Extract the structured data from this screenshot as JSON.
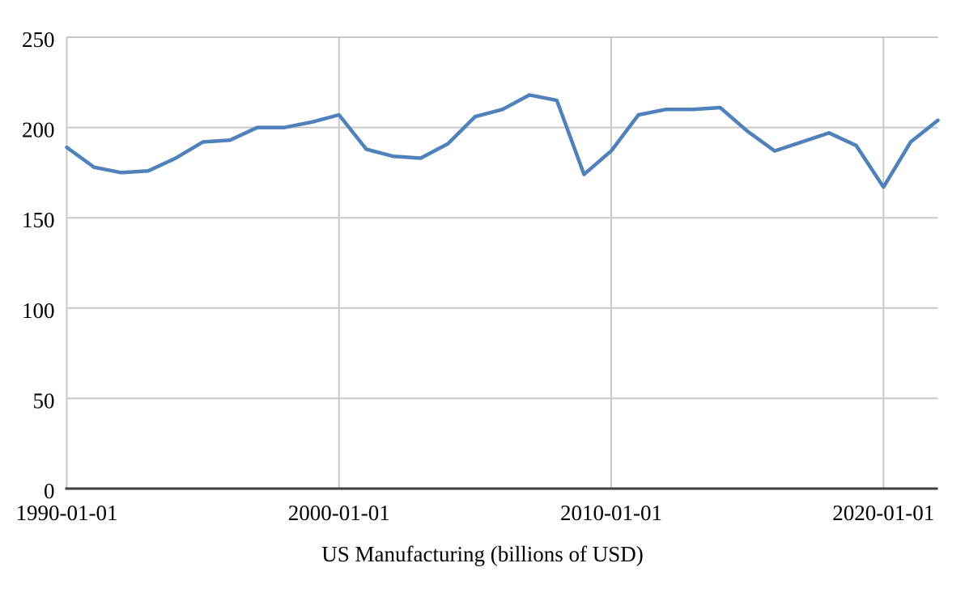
{
  "chart_data": {
    "type": "line",
    "title": "US Manufacturing (billions of USD)",
    "series_name": "US Manufacturing",
    "xlabel": "",
    "ylabel": "",
    "ylim": [
      0,
      250
    ],
    "xlim_years": [
      1990,
      2022
    ],
    "grid": true,
    "legend_position": "none",
    "y_ticks": [
      0,
      50,
      100,
      150,
      200,
      250
    ],
    "x_ticks": [
      {
        "year": 1990,
        "label": "1990-01-01"
      },
      {
        "year": 2000,
        "label": "2000-01-01"
      },
      {
        "year": 2010,
        "label": "2010-01-01"
      },
      {
        "year": 2020,
        "label": "2020-01-01"
      }
    ],
    "x_years": [
      1990,
      1991,
      1992,
      1993,
      1994,
      1995,
      1996,
      1997,
      1998,
      1999,
      2000,
      2001,
      2002,
      2003,
      2004,
      2005,
      2006,
      2007,
      2008,
      2009,
      2010,
      2011,
      2012,
      2013,
      2014,
      2015,
      2016,
      2017,
      2018,
      2019,
      2020,
      2021,
      2022
    ],
    "values": [
      189,
      178,
      175,
      176,
      183,
      192,
      193,
      200,
      200,
      203,
      207,
      188,
      184,
      183,
      191,
      206,
      210,
      218,
      215,
      174,
      187,
      207,
      210,
      210,
      211,
      198,
      187,
      192,
      197,
      190,
      167,
      192,
      204
    ]
  },
  "colors": {
    "line": "#4f81bd",
    "grid": "#c9c9c9",
    "axis": "#3f3f3f",
    "text": "#000000",
    "background": "#ffffff"
  }
}
